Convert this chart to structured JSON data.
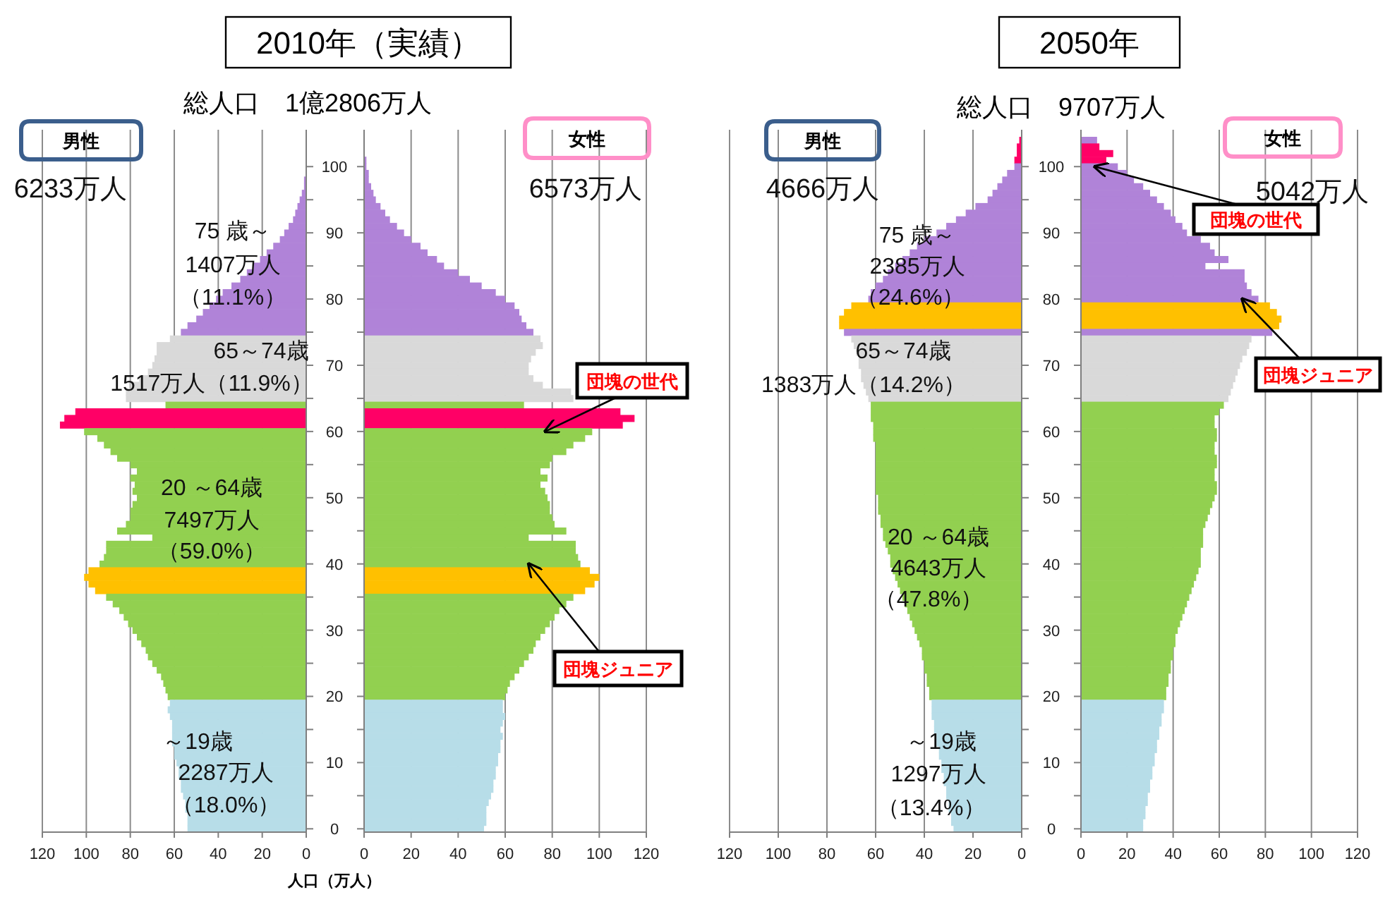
{
  "chart_data": [
    {
      "type": "bar",
      "orientation": "horizontal",
      "title": "2010年（実績）",
      "subtitle": "総人口　1億2806万人",
      "categories": [
        null,
        null,
        null,
        null,
        "100",
        null,
        null,
        null,
        null,
        null,
        null,
        null,
        null,
        null,
        "90",
        null,
        null,
        null,
        null,
        null,
        null,
        null,
        null,
        null,
        "80",
        null,
        null,
        null,
        null,
        null,
        null,
        null,
        null,
        null,
        "70",
        null,
        null,
        null,
        null,
        null,
        null,
        null,
        null,
        null,
        "60",
        null,
        null,
        null,
        null,
        null,
        null,
        null,
        null,
        null,
        "50",
        null,
        null,
        null,
        null,
        null,
        null,
        null,
        null,
        null,
        "40",
        null,
        null,
        null,
        null,
        null,
        null,
        null,
        null,
        null,
        "30",
        null,
        null,
        null,
        null,
        null,
        null,
        null,
        null,
        null,
        "20",
        null,
        null,
        null,
        null,
        null,
        null,
        null,
        null,
        null,
        "10",
        null,
        null,
        null,
        null,
        null,
        null,
        null,
        null,
        null,
        "0"
      ],
      "values": [
        0,
        0,
        0,
        0,
        0,
        0,
        1,
        1,
        2,
        3,
        4,
        5,
        6,
        8,
        10,
        12,
        15,
        18,
        21,
        24,
        27,
        30,
        34,
        38,
        41,
        44,
        47,
        50,
        54,
        57,
        62,
        68,
        68,
        69,
        70,
        72,
        76,
        80,
        82,
        82,
        64,
        105,
        110,
        112,
        101,
        95,
        92,
        89,
        86,
        80,
        77,
        80,
        78,
        79,
        77,
        79,
        80,
        80,
        82,
        86,
        70,
        91,
        91,
        92,
        94,
        99,
        101,
        99,
        96,
        91,
        88,
        85,
        83,
        81,
        79,
        77,
        75,
        73,
        72,
        70,
        68,
        66,
        65,
        64,
        63,
        62,
        63,
        62,
        61,
        61,
        61,
        61,
        60,
        60,
        59,
        58,
        58,
        57,
        57,
        56,
        55,
        55,
        54,
        54,
        54
      ],
      "colors": [
        "#b083d8",
        "#b083d8",
        "#b083d8",
        "#b083d8",
        "#b083d8",
        "#b083d8",
        "#b083d8",
        "#b083d8",
        "#b083d8",
        "#b083d8",
        "#b083d8",
        "#b083d8",
        "#b083d8",
        "#b083d8",
        "#b083d8",
        "#b083d8",
        "#b083d8",
        "#b083d8",
        "#b083d8",
        "#b083d8",
        "#b083d8",
        "#b083d8",
        "#b083d8",
        "#b083d8",
        "#b083d8",
        "#b083d8",
        "#b083d8",
        "#b083d8",
        "#b083d8",
        "#b083d8",
        "#d9d9d9",
        "#d9d9d9",
        "#d9d9d9",
        "#d9d9d9",
        "#d9d9d9",
        "#d9d9d9",
        "#d9d9d9",
        "#d9d9d9",
        "#d9d9d9",
        "#d9d9d9",
        "#92d050",
        "#ff0066",
        "#ff0066",
        "#ff0066",
        "#92d050",
        "#92d050",
        "#92d050",
        "#92d050",
        "#92d050",
        "#92d050",
        "#92d050",
        "#92d050",
        "#92d050",
        "#92d050",
        "#92d050",
        "#92d050",
        "#92d050",
        "#92d050",
        "#92d050",
        "#92d050",
        "#92d050",
        "#92d050",
        "#92d050",
        "#92d050",
        "#92d050",
        "#ffc000",
        "#ffc000",
        "#ffc000",
        "#ffc000",
        "#92d050",
        "#92d050",
        "#92d050",
        "#92d050",
        "#92d050",
        "#92d050",
        "#92d050",
        "#92d050",
        "#92d050",
        "#92d050",
        "#92d050",
        "#92d050",
        "#92d050",
        "#92d050",
        "#92d050",
        "#92d050",
        "#b7dde8",
        "#b7dde8",
        "#b7dde8",
        "#b7dde8",
        "#b7dde8",
        "#b7dde8",
        "#b7dde8",
        "#b7dde8",
        "#b7dde8",
        "#b7dde8",
        "#b7dde8",
        "#b7dde8",
        "#b7dde8",
        "#b7dde8",
        "#b7dde8",
        "#b7dde8",
        "#b7dde8",
        "#b7dde8",
        "#b7dde8",
        "#b7dde8"
      ],
      "xlim": [
        120,
        0
      ],
      "xticks": [
        0,
        20,
        40,
        60,
        80,
        100,
        120
      ],
      "grid": "x",
      "annotations": [
        "男性",
        "6233万人",
        "75 歳～",
        "1407万人",
        "（11.1%）",
        "65～74歳",
        "1517万人（11.9%）",
        "20 ～64歳",
        "7497万人",
        "（59.0%）",
        "～19歳",
        "2287万人",
        "（18.0%）"
      ]
    },
    {
      "type": "bar",
      "orientation": "horizontal",
      "xlabel": "人口（万人）",
      "categories": [
        null,
        null,
        null,
        null,
        "100",
        null,
        null,
        null,
        null,
        null,
        null,
        null,
        null,
        null,
        "90",
        null,
        null,
        null,
        null,
        null,
        null,
        null,
        null,
        null,
        "80",
        null,
        null,
        null,
        null,
        null,
        null,
        null,
        null,
        null,
        "70",
        null,
        null,
        null,
        null,
        null,
        null,
        null,
        null,
        null,
        "60",
        null,
        null,
        null,
        null,
        null,
        null,
        null,
        null,
        null,
        "50",
        null,
        null,
        null,
        null,
        null,
        null,
        null,
        null,
        null,
        "40",
        null,
        null,
        null,
        null,
        null,
        null,
        null,
        null,
        null,
        "30",
        null,
        null,
        null,
        null,
        null,
        null,
        null,
        null,
        null,
        "20",
        null,
        null,
        null,
        null,
        null,
        null,
        null,
        null,
        null,
        "10",
        null,
        null,
        null,
        null,
        null,
        null,
        null,
        null,
        null,
        "0"
      ],
      "values": [
        0,
        0,
        0,
        1,
        1,
        2,
        2,
        3,
        4,
        5,
        7,
        9,
        11,
        14,
        17,
        20,
        24,
        27,
        31,
        34,
        40,
        45,
        50,
        56,
        60,
        64,
        66,
        67,
        69,
        72,
        75,
        76,
        73,
        71,
        70,
        70,
        72,
        76,
        88,
        89,
        68,
        109,
        115,
        110,
        97,
        94,
        89,
        86,
        80,
        79,
        75,
        78,
        75,
        77,
        78,
        79,
        79,
        80,
        81,
        86,
        70,
        90,
        90,
        91,
        92,
        96,
        100,
        98,
        94,
        89,
        86,
        83,
        81,
        79,
        77,
        75,
        73,
        72,
        70,
        68,
        66,
        64,
        62,
        61,
        60,
        59,
        59,
        60,
        59,
        58,
        59,
        58,
        58,
        57,
        57,
        56,
        56,
        55,
        55,
        54,
        53,
        52,
        52,
        52,
        51
      ],
      "colors": [
        "#b083d8",
        "#b083d8",
        "#b083d8",
        "#b083d8",
        "#b083d8",
        "#b083d8",
        "#b083d8",
        "#b083d8",
        "#b083d8",
        "#b083d8",
        "#b083d8",
        "#b083d8",
        "#b083d8",
        "#b083d8",
        "#b083d8",
        "#b083d8",
        "#b083d8",
        "#b083d8",
        "#b083d8",
        "#b083d8",
        "#b083d8",
        "#b083d8",
        "#b083d8",
        "#b083d8",
        "#b083d8",
        "#b083d8",
        "#b083d8",
        "#b083d8",
        "#b083d8",
        "#b083d8",
        "#d9d9d9",
        "#d9d9d9",
        "#d9d9d9",
        "#d9d9d9",
        "#d9d9d9",
        "#d9d9d9",
        "#d9d9d9",
        "#d9d9d9",
        "#d9d9d9",
        "#d9d9d9",
        "#92d050",
        "#ff0066",
        "#ff0066",
        "#ff0066",
        "#92d050",
        "#92d050",
        "#92d050",
        "#92d050",
        "#92d050",
        "#92d050",
        "#92d050",
        "#92d050",
        "#92d050",
        "#92d050",
        "#92d050",
        "#92d050",
        "#92d050",
        "#92d050",
        "#92d050",
        "#92d050",
        "#92d050",
        "#92d050",
        "#92d050",
        "#92d050",
        "#92d050",
        "#ffc000",
        "#ffc000",
        "#ffc000",
        "#ffc000",
        "#92d050",
        "#92d050",
        "#92d050",
        "#92d050",
        "#92d050",
        "#92d050",
        "#92d050",
        "#92d050",
        "#92d050",
        "#92d050",
        "#92d050",
        "#92d050",
        "#92d050",
        "#92d050",
        "#92d050",
        "#92d050",
        "#b7dde8",
        "#b7dde8",
        "#b7dde8",
        "#b7dde8",
        "#b7dde8",
        "#b7dde8",
        "#b7dde8",
        "#b7dde8",
        "#b7dde8",
        "#b7dde8",
        "#b7dde8",
        "#b7dde8",
        "#b7dde8",
        "#b7dde8",
        "#b7dde8",
        "#b7dde8",
        "#b7dde8",
        "#b7dde8",
        "#b7dde8",
        "#b7dde8"
      ],
      "xlim": [
        0,
        120
      ],
      "xticks": [
        0,
        20,
        40,
        60,
        80,
        100,
        120
      ],
      "grid": "x",
      "tick_labels": "x",
      "annotations": [
        "女性",
        "6573万人",
        {
          "text": "団塊の世代",
          "x": 77,
          "y": "60"
        },
        {
          "text": "団塊ジュニア",
          "x": 70,
          "y": "40"
        }
      ]
    },
    {
      "type": "bar",
      "orientation": "horizontal",
      "categories": [
        null,
        null,
        null,
        null,
        "100",
        null,
        null,
        null,
        null,
        null,
        null,
        null,
        null,
        null,
        "90",
        null,
        null,
        null,
        null,
        null,
        null,
        null,
        null,
        null,
        "80",
        null,
        null,
        null,
        null,
        null,
        null,
        null,
        null,
        null,
        "70",
        null,
        null,
        null,
        null,
        null,
        null,
        null,
        null,
        null,
        "60",
        null,
        null,
        null,
        null,
        null,
        null,
        null,
        null,
        null,
        "50",
        null,
        null,
        null,
        null,
        null,
        null,
        null,
        null,
        null,
        "40",
        null,
        null,
        null,
        null,
        null,
        null,
        null,
        null,
        null,
        "30",
        null,
        null,
        null,
        null,
        null,
        null,
        null,
        null,
        null,
        "20",
        null,
        null,
        null,
        null,
        null,
        null,
        null,
        null,
        null,
        "10",
        null,
        null,
        null,
        null,
        null,
        null,
        null,
        null,
        null,
        "0"
      ],
      "values": [
        1,
        2,
        2,
        3,
        3,
        6,
        8,
        10,
        12,
        14,
        19,
        23,
        27,
        31,
        35,
        40,
        43,
        46,
        49,
        52,
        55,
        57,
        60,
        62,
        63,
        70,
        73,
        75,
        75,
        73,
        70,
        69,
        68,
        67,
        67,
        66,
        66,
        65,
        64,
        63,
        62,
        62,
        62,
        61,
        61,
        61,
        60,
        60,
        60,
        60,
        60,
        60,
        60,
        60,
        59,
        59,
        59,
        58,
        58,
        57,
        57,
        56,
        55,
        54,
        54,
        53,
        52,
        51,
        50,
        49,
        48,
        47,
        46,
        45,
        44,
        43,
        42,
        41,
        41,
        40,
        40,
        39,
        39,
        38,
        38,
        37,
        37,
        37,
        36,
        36,
        35,
        35,
        34,
        34,
        33,
        33,
        32,
        32,
        31,
        31,
        30,
        30,
        29,
        29,
        28
      ],
      "colors": [
        "#ff0066",
        "#ff0066",
        "#ff0066",
        "#ff0066",
        "#b083d8",
        "#b083d8",
        "#b083d8",
        "#b083d8",
        "#b083d8",
        "#b083d8",
        "#b083d8",
        "#b083d8",
        "#b083d8",
        "#b083d8",
        "#b083d8",
        "#b083d8",
        "#b083d8",
        "#b083d8",
        "#b083d8",
        "#b083d8",
        "#b083d8",
        "#b083d8",
        "#b083d8",
        "#b083d8",
        "#b083d8",
        "#ffc000",
        "#ffc000",
        "#ffc000",
        "#ffc000",
        "#b083d8",
        "#d9d9d9",
        "#d9d9d9",
        "#d9d9d9",
        "#d9d9d9",
        "#d9d9d9",
        "#d9d9d9",
        "#d9d9d9",
        "#d9d9d9",
        "#d9d9d9",
        "#d9d9d9",
        "#92d050",
        "#92d050",
        "#92d050",
        "#92d050",
        "#92d050",
        "#92d050",
        "#92d050",
        "#92d050",
        "#92d050",
        "#92d050",
        "#92d050",
        "#92d050",
        "#92d050",
        "#92d050",
        "#92d050",
        "#92d050",
        "#92d050",
        "#92d050",
        "#92d050",
        "#92d050",
        "#92d050",
        "#92d050",
        "#92d050",
        "#92d050",
        "#92d050",
        "#92d050",
        "#92d050",
        "#92d050",
        "#92d050",
        "#92d050",
        "#92d050",
        "#92d050",
        "#92d050",
        "#92d050",
        "#92d050",
        "#92d050",
        "#92d050",
        "#92d050",
        "#92d050",
        "#92d050",
        "#92d050",
        "#92d050",
        "#92d050",
        "#92d050",
        "#92d050",
        "#b7dde8",
        "#b7dde8",
        "#b7dde8",
        "#b7dde8",
        "#b7dde8",
        "#b7dde8",
        "#b7dde8",
        "#b7dde8",
        "#b7dde8",
        "#b7dde8",
        "#b7dde8",
        "#b7dde8",
        "#b7dde8",
        "#b7dde8",
        "#b7dde8",
        "#b7dde8",
        "#b7dde8",
        "#b7dde8",
        "#b7dde8",
        "#b7dde8"
      ],
      "xlim": [
        120,
        0
      ],
      "xticks": [
        0,
        20,
        40,
        60,
        80,
        100,
        120
      ],
      "grid": "x",
      "annotations": [
        "男性",
        "4666万人",
        "75 歳～",
        "2385万人",
        "（24.6%）",
        "65～74歳",
        "1383万人（14.2%）",
        "20 ～64歳",
        "4643万人",
        "（47.8%）",
        "～19歳",
        "1297万人",
        "（13.4%）"
      ]
    },
    {
      "type": "bar",
      "orientation": "horizontal",
      "title": "2050年",
      "subtitle": "総人口　9707万人",
      "categories": [
        null,
        null,
        null,
        null,
        "100",
        null,
        null,
        null,
        null,
        null,
        null,
        null,
        null,
        null,
        "90",
        null,
        null,
        null,
        null,
        null,
        null,
        null,
        null,
        null,
        "80",
        null,
        null,
        null,
        null,
        null,
        null,
        null,
        null,
        null,
        "70",
        null,
        null,
        null,
        null,
        null,
        null,
        null,
        null,
        null,
        "60",
        null,
        null,
        null,
        null,
        null,
        null,
        null,
        null,
        null,
        "50",
        null,
        null,
        null,
        null,
        null,
        null,
        null,
        null,
        null,
        "40",
        null,
        null,
        null,
        null,
        null,
        null,
        null,
        null,
        null,
        "30",
        null,
        null,
        null,
        null,
        null,
        null,
        null,
        null,
        null,
        "20",
        null,
        null,
        null,
        null,
        null,
        null,
        null,
        null,
        null,
        "10",
        null,
        null,
        null,
        null,
        null,
        null,
        null,
        null,
        null,
        "0"
      ],
      "values": [
        7,
        8,
        14,
        11,
        16,
        20,
        23,
        27,
        30,
        33,
        36,
        39,
        41,
        44,
        46,
        52,
        56,
        58,
        64,
        54,
        71,
        71,
        72,
        74,
        77,
        82,
        85,
        87,
        86,
        83,
        74,
        73,
        72,
        70,
        69,
        68,
        67,
        66,
        65,
        64,
        62,
        60,
        58,
        58,
        59,
        59,
        58,
        58,
        59,
        59,
        58,
        58,
        59,
        59,
        58,
        57,
        56,
        55,
        54,
        53,
        53,
        53,
        52,
        52,
        52,
        51,
        50,
        49,
        48,
        47,
        46,
        45,
        44,
        43,
        42,
        41,
        41,
        40,
        40,
        39,
        39,
        38,
        38,
        37,
        37,
        36,
        36,
        35,
        35,
        34,
        34,
        33,
        33,
        32,
        32,
        31,
        31,
        30,
        30,
        29,
        29,
        28,
        28,
        27,
        27
      ],
      "colors": [
        "#b083d8",
        "#ff0066",
        "#ff0066",
        "#ff0066",
        "#b083d8",
        "#b083d8",
        "#b083d8",
        "#b083d8",
        "#b083d8",
        "#b083d8",
        "#b083d8",
        "#b083d8",
        "#b083d8",
        "#b083d8",
        "#b083d8",
        "#b083d8",
        "#b083d8",
        "#b083d8",
        "#b083d8",
        "#b083d8",
        "#b083d8",
        "#b083d8",
        "#b083d8",
        "#b083d8",
        "#b083d8",
        "#ffc000",
        "#ffc000",
        "#ffc000",
        "#ffc000",
        "#b083d8",
        "#d9d9d9",
        "#d9d9d9",
        "#d9d9d9",
        "#d9d9d9",
        "#d9d9d9",
        "#d9d9d9",
        "#d9d9d9",
        "#d9d9d9",
        "#d9d9d9",
        "#d9d9d9",
        "#92d050",
        "#92d050",
        "#92d050",
        "#92d050",
        "#92d050",
        "#92d050",
        "#92d050",
        "#92d050",
        "#92d050",
        "#92d050",
        "#92d050",
        "#92d050",
        "#92d050",
        "#92d050",
        "#92d050",
        "#92d050",
        "#92d050",
        "#92d050",
        "#92d050",
        "#92d050",
        "#92d050",
        "#92d050",
        "#92d050",
        "#92d050",
        "#92d050",
        "#92d050",
        "#92d050",
        "#92d050",
        "#92d050",
        "#92d050",
        "#92d050",
        "#92d050",
        "#92d050",
        "#92d050",
        "#92d050",
        "#92d050",
        "#92d050",
        "#92d050",
        "#92d050",
        "#92d050",
        "#92d050",
        "#92d050",
        "#92d050",
        "#92d050",
        "#92d050",
        "#b7dde8",
        "#b7dde8",
        "#b7dde8",
        "#b7dde8",
        "#b7dde8",
        "#b7dde8",
        "#b7dde8",
        "#b7dde8",
        "#b7dde8",
        "#b7dde8",
        "#b7dde8",
        "#b7dde8",
        "#b7dde8",
        "#b7dde8",
        "#b7dde8",
        "#b7dde8",
        "#b7dde8",
        "#b7dde8",
        "#b7dde8",
        "#b7dde8"
      ],
      "xlim": [
        0,
        120
      ],
      "xticks": [
        0,
        20,
        40,
        60,
        80,
        100,
        120
      ],
      "grid": "x",
      "tick_labels": "x",
      "annotations": [
        "女性",
        "5042万人",
        {
          "text": "団塊の世代",
          "x": 6,
          "y": "100"
        },
        {
          "text": "団塊ジュニア",
          "x": 70,
          "y": "80"
        }
      ]
    }
  ]
}
